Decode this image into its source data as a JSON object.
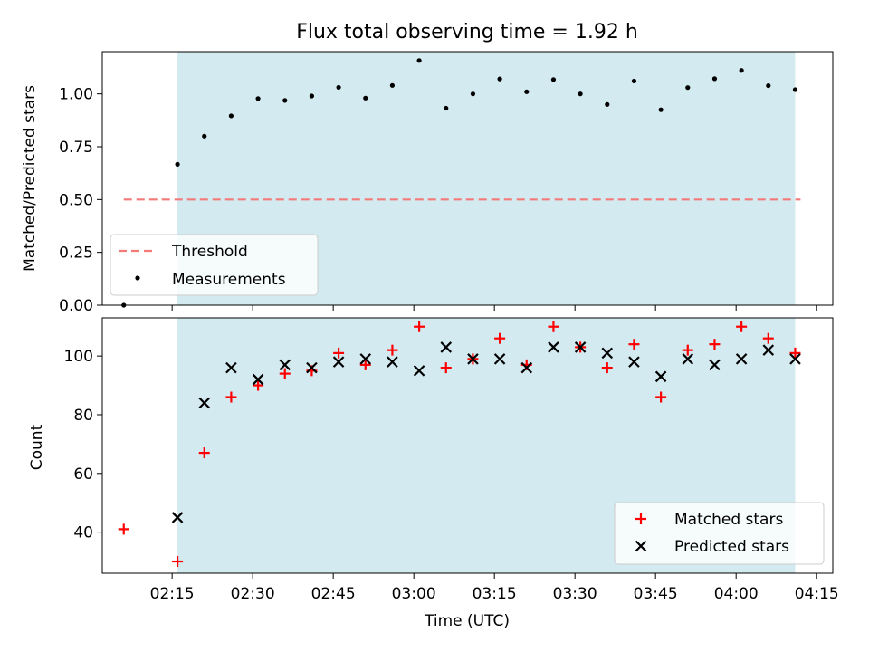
{
  "colors": {
    "span": "#d3eaf1",
    "threshold": "#f47a7a",
    "measurement": "#000000",
    "matched": "#ff0000",
    "predicted": "#000000"
  },
  "chart_data": [
    {
      "type": "scatter",
      "title": "Flux total observing time = 1.92 h",
      "xlabel": "",
      "ylabel": "Matched/Predicted stars",
      "ylim": [
        0.0,
        1.2
      ],
      "yticks": [
        0.0,
        0.25,
        0.5,
        0.75,
        1.0
      ],
      "ytick_labels": [
        "0.00",
        "0.25",
        "0.50",
        "0.75",
        "1.00"
      ],
      "xlim_minutes": [
        122,
        258
      ],
      "highlight_span_minutes": [
        136,
        251
      ],
      "threshold": {
        "label": "Threshold",
        "value": 0.5,
        "x_range_minutes": [
          126,
          252
        ]
      },
      "measurements": {
        "label": "Measurements",
        "x_minutes": [
          126,
          136,
          141,
          146,
          151,
          156,
          161,
          166,
          171,
          176,
          181,
          186,
          191,
          196,
          201,
          206,
          211,
          216,
          221,
          226,
          231,
          236,
          241,
          246,
          251
        ],
        "y": [
          0.0,
          0.667,
          0.8,
          0.896,
          0.978,
          0.969,
          0.99,
          1.031,
          0.98,
          1.04,
          1.158,
          0.932,
          1.0,
          1.071,
          1.01,
          1.068,
          1.0,
          0.95,
          1.061,
          0.925,
          1.03,
          1.072,
          1.111,
          1.039,
          1.02
        ]
      },
      "legend": [
        "Threshold",
        "Measurements"
      ],
      "legend_position": "lower-left"
    },
    {
      "type": "scatter",
      "xlabel": "Time (UTC)",
      "ylabel": "Count",
      "ylim": [
        26,
        113
      ],
      "yticks": [
        40,
        60,
        80,
        100
      ],
      "ytick_labels": [
        "40",
        "60",
        "80",
        "100"
      ],
      "xlim_minutes": [
        122,
        258
      ],
      "xticks_minutes": [
        135,
        150,
        165,
        180,
        195,
        210,
        225,
        240,
        255
      ],
      "xtick_labels": [
        "02:15",
        "02:30",
        "02:45",
        "03:00",
        "03:15",
        "03:30",
        "03:45",
        "04:00",
        "04:15"
      ],
      "highlight_span_minutes": [
        136,
        251
      ],
      "series": [
        {
          "name": "Matched stars",
          "marker": "+",
          "x_minutes": [
            126,
            136,
            141,
            146,
            151,
            156,
            161,
            166,
            171,
            176,
            181,
            186,
            191,
            196,
            201,
            206,
            211,
            216,
            221,
            226,
            231,
            236,
            241,
            246,
            251
          ],
          "values": [
            41,
            30,
            67,
            86,
            90,
            94,
            95,
            101,
            97,
            102,
            110,
            96,
            99,
            106,
            97,
            110,
            103,
            96,
            104,
            86,
            102,
            104,
            110,
            106,
            101
          ]
        },
        {
          "name": "Predicted stars",
          "marker": "x",
          "x_minutes": [
            136,
            141,
            146,
            151,
            156,
            161,
            166,
            171,
            176,
            181,
            186,
            191,
            196,
            201,
            206,
            211,
            216,
            221,
            226,
            231,
            236,
            241,
            246,
            251
          ],
          "values": [
            45,
            84,
            96,
            92,
            97,
            96,
            98,
            99,
            98,
            95,
            103,
            99,
            99,
            96,
            103,
            103,
            101,
            98,
            93,
            99,
            97,
            99,
            102,
            99
          ]
        }
      ],
      "legend": [
        "Matched stars",
        "Predicted stars"
      ],
      "legend_position": "lower-right"
    }
  ]
}
